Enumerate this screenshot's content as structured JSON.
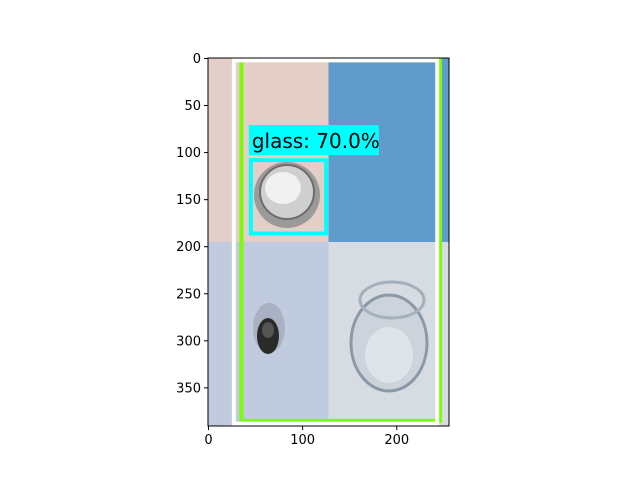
{
  "chart_data": {
    "type": "image",
    "title": "",
    "xlabel": "",
    "ylabel": "",
    "xlim": [
      -0.5,
      255.5
    ],
    "ylim": [
      390.5,
      -0.5
    ],
    "xticks": [
      0,
      100,
      200
    ],
    "yticks": [
      0,
      50,
      100,
      150,
      200,
      250,
      300,
      350
    ],
    "grid": false,
    "image": {
      "description": "Mosaic of 4 tiles",
      "tiles": [
        {
          "name": "tile-top-left",
          "x0": 0,
          "x1": 127.5,
          "y0": 0,
          "y1": 195,
          "color": "#e3cec8"
        },
        {
          "name": "tile-top-right",
          "x0": 127.5,
          "x1": 255.5,
          "y0": 0,
          "y1": 195,
          "color": "#5f9ccb"
        },
        {
          "name": "tile-bottom-left",
          "x0": 0,
          "x1": 127.5,
          "y0": 195,
          "y1": 390.5,
          "color": "#c0cbe0"
        },
        {
          "name": "tile-bottom-right",
          "x0": 127.5,
          "x1": 255.5,
          "y0": 195,
          "y1": 390.5,
          "color": "#d7dbe2"
        }
      ]
    },
    "boxes": [
      {
        "label": "glass: 70.0%",
        "class": "glass",
        "score": 70.0,
        "xmin": 45,
        "ymin": 108,
        "xmax": 125,
        "ymax": 186,
        "color": "#00ffff",
        "show_label": true
      },
      {
        "label": "",
        "xmin": 35,
        "ymin": 2,
        "xmax": 246,
        "ymax": 385,
        "color": "#7cfc00",
        "show_label": false
      },
      {
        "label": "",
        "xmin": 27,
        "ymin": 2,
        "xmax": 243,
        "ymax": 388,
        "color": "#ffffff",
        "show_label": false
      }
    ]
  }
}
